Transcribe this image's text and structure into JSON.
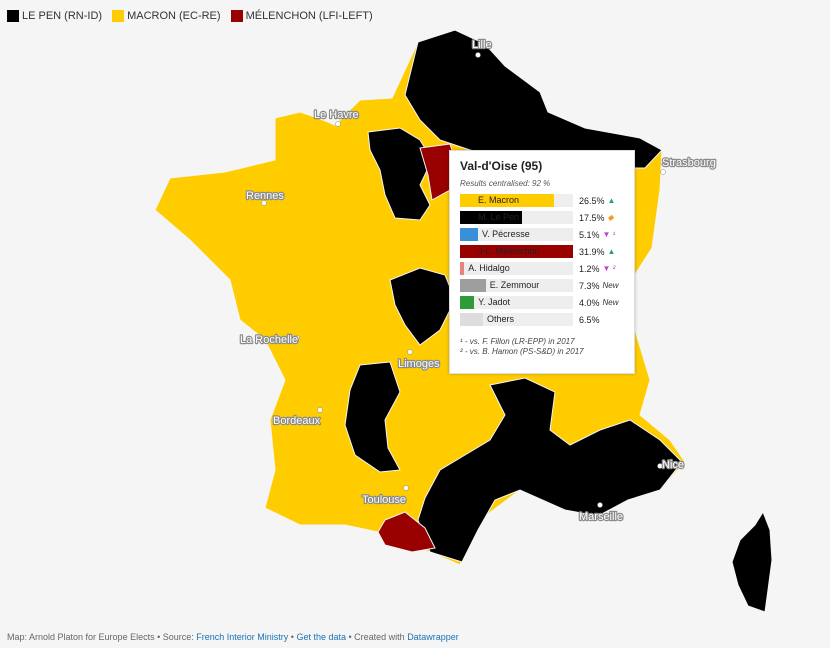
{
  "legend": [
    {
      "label": "LE PEN (RN-ID)",
      "color": "#000000"
    },
    {
      "label": "MACRON (EC-RE)",
      "color": "#ffcc00"
    },
    {
      "label": "MÉLENCHON (LFI-LEFT)",
      "color": "#990000"
    }
  ],
  "cities": [
    {
      "name": "Lille"
    },
    {
      "name": "Le Havre"
    },
    {
      "name": "Strasbourg"
    },
    {
      "name": "Rennes"
    },
    {
      "name": "La Rochelle"
    },
    {
      "name": "Limoges"
    },
    {
      "name": "Bordeaux"
    },
    {
      "name": "Toulouse"
    },
    {
      "name": "Nice"
    },
    {
      "name": "Marseille"
    }
  ],
  "tooltip": {
    "title": "Val-d'Oise (95)",
    "subtitle": "Results centralised: 92 %",
    "rows": [
      {
        "name": "E. Macron",
        "value": 26.5,
        "pct": "26.5%",
        "change": "▲",
        "change_class": "up",
        "color": "#ffcc00"
      },
      {
        "name": "M. Le Pen",
        "value": 17.5,
        "pct": "17.5%",
        "change": "◆",
        "change_class": "same",
        "color": "#000000"
      },
      {
        "name": "V. Pécresse",
        "value": 5.1,
        "pct": "5.1%",
        "change": "▼ ¹",
        "change_class": "down",
        "color": "#3a8fd9"
      },
      {
        "name": "J-L. Mélenchon",
        "value": 31.9,
        "pct": "31.9%",
        "change": "▲",
        "change_class": "up",
        "color": "#990000"
      },
      {
        "name": "A. Hidalgo",
        "value": 1.2,
        "pct": "1.2%",
        "change": "▼ ²",
        "change_class": "down",
        "color": "#e8837e"
      },
      {
        "name": "E. Zemmour",
        "value": 7.3,
        "pct": "7.3%",
        "change": "New",
        "change_class": "",
        "color": "#9e9e9e"
      },
      {
        "name": "Y. Jadot",
        "value": 4.0,
        "pct": "4.0%",
        "change": "New",
        "change_class": "",
        "color": "#2e9a3a"
      },
      {
        "name": "Others",
        "value": 6.5,
        "pct": "6.5%",
        "change": "",
        "change_class": "",
        "color": "#dddddd"
      }
    ],
    "notes": [
      "¹ - vs. F. Fillon (LR-EPP) in 2017",
      "² - vs. B. Hamon (PS-S&D) in 2017"
    ]
  },
  "footer": {
    "prefix": "Map: Arnold Platon for Europe Elects • Source: ",
    "source_link": "French Interior Ministry",
    "sep1": " • ",
    "data_link": "Get the data",
    "sep2": " • Created with ",
    "tool_link": "Datawrapper"
  }
}
